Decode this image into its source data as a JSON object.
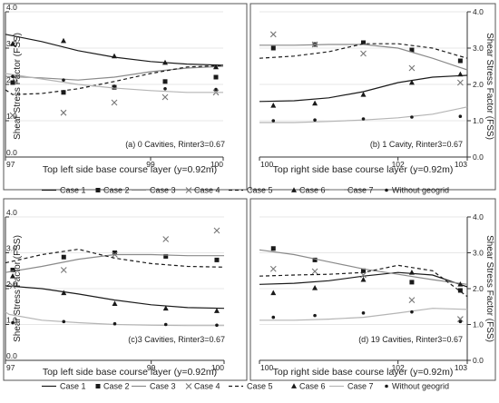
{
  "figure": {
    "legend": [
      {
        "label": "Case 1",
        "series": 0
      },
      {
        "label": "Case 2",
        "series": 1
      },
      {
        "label": "Case 3",
        "series": 2
      },
      {
        "label": "Case 4",
        "series": 3
      },
      {
        "label": "Case 5",
        "series": 4
      },
      {
        "label": "Case 6",
        "series": 5
      },
      {
        "label": "Case 7",
        "series": 6
      },
      {
        "label": "Without geogrid",
        "series": 7
      }
    ]
  },
  "series_styles": [
    {
      "kind": "line",
      "color": "#1a1a1a",
      "dash": "",
      "width": 1.2
    },
    {
      "kind": "marker",
      "marker": "square",
      "color": "#1a1a1a"
    },
    {
      "kind": "line",
      "color": "#8a8a8a",
      "dash": "",
      "width": 1.2
    },
    {
      "kind": "marker",
      "marker": "cross",
      "color": "#777777"
    },
    {
      "kind": "line",
      "color": "#1a1a1a",
      "dash": "4,3",
      "width": 1.2
    },
    {
      "kind": "marker",
      "marker": "triangle",
      "color": "#1a1a1a"
    },
    {
      "kind": "line",
      "color": "#b5b5b5",
      "dash": "",
      "width": 1.2
    },
    {
      "kind": "marker",
      "marker": "dot",
      "color": "#1a1a1a"
    }
  ],
  "chart_data": [
    {
      "type": "line",
      "annotation": "(a) 0 Cavities, Rinter3=0.67",
      "xlabel": "Top left side base course layer (y=0.92m)",
      "ylabel": "Shear Stress Factor (FSS)",
      "ylabel_side": "left",
      "xlim": [
        97,
        100
      ],
      "ylim": [
        0,
        4
      ],
      "xticks": [
        "97",
        "99",
        "100"
      ],
      "xtick_values": [
        97,
        99,
        100
      ],
      "yticks": [
        "0.0",
        "1.0",
        "2.0",
        "3.0",
        "4.0"
      ],
      "grid": true,
      "series": [
        {
          "values": [
            [
              97,
              3.38
            ],
            [
              97.5,
              3.18
            ],
            [
              98,
              2.93
            ],
            [
              98.5,
              2.75
            ],
            [
              99,
              2.63
            ],
            [
              99.5,
              2.56
            ],
            [
              100,
              2.53
            ]
          ]
        },
        {
          "values": [
            [
              97.1,
              2.05
            ],
            [
              97.8,
              1.78
            ],
            [
              98.5,
              1.92
            ],
            [
              99.2,
              2.08
            ],
            [
              99.9,
              2.2
            ]
          ]
        },
        {
          "values": [
            [
              97,
              2.22
            ],
            [
              97.5,
              2.18
            ],
            [
              98,
              2.12
            ],
            [
              98.5,
              2.2
            ],
            [
              99,
              2.35
            ],
            [
              99.5,
              2.45
            ],
            [
              100,
              2.5
            ]
          ]
        },
        {
          "values": [
            [
              97.1,
              1.15
            ],
            [
              97.8,
              1.22
            ],
            [
              98.5,
              1.5
            ],
            [
              99.2,
              1.65
            ],
            [
              99.9,
              1.78
            ]
          ]
        },
        {
          "values": [
            [
              97,
              1.85
            ],
            [
              97.1,
              1.72
            ],
            [
              97.5,
              1.75
            ],
            [
              98,
              1.88
            ],
            [
              98.5,
              2.08
            ],
            [
              99,
              2.3
            ],
            [
              99.5,
              2.48
            ],
            [
              100,
              2.52
            ]
          ]
        },
        {
          "values": [
            [
              97.1,
              3.12
            ],
            [
              97.8,
              3.2
            ],
            [
              98.5,
              2.78
            ],
            [
              99.2,
              2.6
            ],
            [
              99.9,
              2.48
            ]
          ]
        },
        {
          "values": [
            [
              97,
              2.3
            ],
            [
              97.5,
              2.15
            ],
            [
              98,
              2.0
            ],
            [
              98.5,
              1.9
            ],
            [
              99,
              1.83
            ],
            [
              99.5,
              1.78
            ],
            [
              100,
              1.78
            ]
          ]
        },
        {
          "values": [
            [
              97.1,
              2.22
            ],
            [
              97.8,
              2.12
            ],
            [
              98.5,
              1.95
            ],
            [
              99.2,
              1.88
            ],
            [
              99.9,
              1.86
            ]
          ]
        }
      ]
    },
    {
      "type": "line",
      "annotation": "(b) 1 Cavity, Rinter3=0.67",
      "xlabel": "Top right side base course layer (y=0.92m)",
      "ylabel": "Shear Stress Factor (FSS)",
      "ylabel_side": "right",
      "xlim": [
        100,
        103
      ],
      "ylim": [
        0,
        4
      ],
      "xticks": [
        "100",
        "102",
        "103"
      ],
      "xtick_values": [
        100,
        102,
        103
      ],
      "yticks": [
        "0.0",
        "1.0",
        "2.0",
        "3.0",
        "4.0"
      ],
      "grid": true,
      "series": [
        {
          "values": [
            [
              100,
              1.53
            ],
            [
              100.5,
              1.55
            ],
            [
              101,
              1.63
            ],
            [
              101.5,
              1.8
            ],
            [
              102,
              2.05
            ],
            [
              102.5,
              2.2
            ],
            [
              103,
              2.25
            ]
          ]
        },
        {
          "values": [
            [
              100.2,
              3.0
            ],
            [
              100.8,
              3.1
            ],
            [
              101.5,
              3.15
            ],
            [
              102.2,
              2.95
            ],
            [
              102.9,
              2.65
            ]
          ]
        },
        {
          "values": [
            [
              100,
              3.08
            ],
            [
              100.5,
              3.08
            ],
            [
              101,
              3.1
            ],
            [
              101.5,
              3.1
            ],
            [
              102,
              3.0
            ],
            [
              102.5,
              2.72
            ],
            [
              103,
              2.4
            ]
          ]
        },
        {
          "values": [
            [
              100.2,
              3.38
            ],
            [
              100.8,
              3.1
            ],
            [
              101.5,
              2.85
            ],
            [
              102.2,
              2.45
            ],
            [
              102.9,
              2.05
            ]
          ]
        },
        {
          "values": [
            [
              100,
              2.72
            ],
            [
              100.5,
              2.78
            ],
            [
              101,
              2.9
            ],
            [
              101.5,
              3.12
            ],
            [
              102,
              3.12
            ],
            [
              102.5,
              3.0
            ],
            [
              103,
              2.72
            ]
          ]
        },
        {
          "values": [
            [
              100.2,
              1.42
            ],
            [
              100.8,
              1.48
            ],
            [
              101.5,
              1.72
            ],
            [
              102.2,
              2.05
            ],
            [
              102.9,
              2.28
            ]
          ]
        },
        {
          "values": [
            [
              100,
              0.95
            ],
            [
              100.5,
              0.95
            ],
            [
              101,
              0.98
            ],
            [
              101.5,
              1.02
            ],
            [
              102,
              1.08
            ],
            [
              102.5,
              1.18
            ],
            [
              103,
              1.38
            ]
          ]
        },
        {
          "values": [
            [
              100.2,
              1.0
            ],
            [
              100.8,
              1.02
            ],
            [
              101.5,
              1.05
            ],
            [
              102.2,
              1.1
            ],
            [
              102.9,
              1.12
            ]
          ]
        }
      ]
    },
    {
      "type": "line",
      "annotation": "(c)3 Cavities, Rinter3=0.67",
      "xlabel": "Top left side base course layer (y=0.92m)",
      "ylabel": "Shear Stress Factor (FSS)",
      "ylabel_side": "left",
      "xlim": [
        97,
        100
      ],
      "ylim": [
        0,
        4
      ],
      "xticks": [
        "97",
        "99",
        "100"
      ],
      "xtick_values": [
        97,
        99,
        100
      ],
      "yticks": [
        "0.0",
        "1.0",
        "2.0",
        "3.0",
        "4.0"
      ],
      "grid": true,
      "series": [
        {
          "values": [
            [
              97,
              2.08
            ],
            [
              97.5,
              2.0
            ],
            [
              98,
              1.85
            ],
            [
              98.5,
              1.68
            ],
            [
              99,
              1.55
            ],
            [
              99.5,
              1.47
            ],
            [
              100,
              1.45
            ]
          ]
        },
        {
          "values": [
            [
              97.1,
              2.52
            ],
            [
              97.8,
              2.88
            ],
            [
              98.5,
              3.0
            ],
            [
              99.2,
              2.9
            ],
            [
              99.9,
              2.8
            ]
          ]
        },
        {
          "values": [
            [
              97,
              2.45
            ],
            [
              97.5,
              2.62
            ],
            [
              98,
              2.82
            ],
            [
              98.5,
              2.95
            ],
            [
              99,
              2.95
            ],
            [
              99.5,
              2.92
            ],
            [
              100,
              2.92
            ]
          ]
        },
        {
          "values": [
            [
              97.1,
              2.08
            ],
            [
              97.8,
              2.52
            ],
            [
              98.5,
              2.95
            ],
            [
              99.2,
              3.38
            ],
            [
              99.9,
              3.62
            ]
          ]
        },
        {
          "values": [
            [
              97,
              2.72
            ],
            [
              97.5,
              2.95
            ],
            [
              98,
              3.1
            ],
            [
              98.5,
              2.85
            ],
            [
              99,
              2.7
            ],
            [
              99.5,
              2.62
            ],
            [
              100,
              2.6
            ]
          ]
        },
        {
          "values": [
            [
              97.1,
              2.35
            ],
            [
              97.8,
              1.88
            ],
            [
              98.5,
              1.58
            ],
            [
              99.2,
              1.45
            ],
            [
              99.9,
              1.38
            ]
          ]
        },
        {
          "values": [
            [
              97,
              1.35
            ],
            [
              97.05,
              1.28
            ],
            [
              97.5,
              1.12
            ],
            [
              98,
              1.05
            ],
            [
              98.5,
              1.0
            ],
            [
              99,
              0.98
            ],
            [
              99.5,
              0.97
            ],
            [
              100,
              0.97
            ]
          ]
        },
        {
          "values": [
            [
              97.1,
              1.05
            ],
            [
              97.8,
              1.08
            ],
            [
              98.5,
              1.02
            ],
            [
              99.2,
              1.0
            ],
            [
              99.9,
              0.98
            ]
          ]
        }
      ]
    },
    {
      "type": "line",
      "annotation": "(d) 19 Cavities, Rinter3=0.67",
      "xlabel": "Top right side base course layer (y=0.92m)",
      "ylabel": "Shear Stress Factor (FSS)",
      "ylabel_side": "right",
      "xlim": [
        100,
        103
      ],
      "ylim": [
        0,
        4
      ],
      "xticks": [
        "100",
        "102",
        "103"
      ],
      "xtick_values": [
        100,
        102,
        103
      ],
      "yticks": [
        "0.0",
        "1.0",
        "2.0",
        "3.0",
        "4.0"
      ],
      "grid": true,
      "series": [
        {
          "values": [
            [
              100,
              2.12
            ],
            [
              100.5,
              2.15
            ],
            [
              101,
              2.22
            ],
            [
              101.5,
              2.35
            ],
            [
              102,
              2.45
            ],
            [
              102.5,
              2.38
            ],
            [
              103,
              2.05
            ]
          ]
        },
        {
          "values": [
            [
              100.2,
              3.12
            ],
            [
              100.8,
              2.8
            ],
            [
              101.5,
              2.5
            ],
            [
              102.2,
              2.18
            ],
            [
              102.9,
              1.95
            ]
          ]
        },
        {
          "values": [
            [
              100,
              3.08
            ],
            [
              100.5,
              2.95
            ],
            [
              101,
              2.75
            ],
            [
              101.5,
              2.55
            ],
            [
              102,
              2.4
            ],
            [
              102.5,
              2.25
            ],
            [
              103,
              2.12
            ]
          ]
        },
        {
          "values": [
            [
              100.2,
              2.55
            ],
            [
              100.8,
              2.48
            ],
            [
              101.5,
              2.38
            ],
            [
              102.2,
              1.68
            ],
            [
              102.9,
              1.15
            ]
          ]
        },
        {
          "values": [
            [
              100,
              2.35
            ],
            [
              100.5,
              2.38
            ],
            [
              101,
              2.4
            ],
            [
              101.5,
              2.45
            ],
            [
              102,
              2.65
            ],
            [
              102.5,
              2.5
            ],
            [
              103,
              1.78
            ]
          ]
        },
        {
          "values": [
            [
              100.2,
              1.88
            ],
            [
              100.8,
              2.02
            ],
            [
              101.5,
              2.25
            ],
            [
              102.2,
              2.45
            ],
            [
              102.9,
              2.12
            ]
          ]
        },
        {
          "values": [
            [
              100,
              1.12
            ],
            [
              100.5,
              1.12
            ],
            [
              101,
              1.15
            ],
            [
              101.5,
              1.2
            ],
            [
              102,
              1.32
            ],
            [
              102.5,
              1.45
            ],
            [
              103,
              1.42
            ]
          ]
        },
        {
          "values": [
            [
              100.2,
              1.2
            ],
            [
              100.8,
              1.25
            ],
            [
              101.5,
              1.32
            ],
            [
              102.2,
              1.35
            ],
            [
              102.9,
              1.08
            ]
          ]
        }
      ]
    }
  ]
}
